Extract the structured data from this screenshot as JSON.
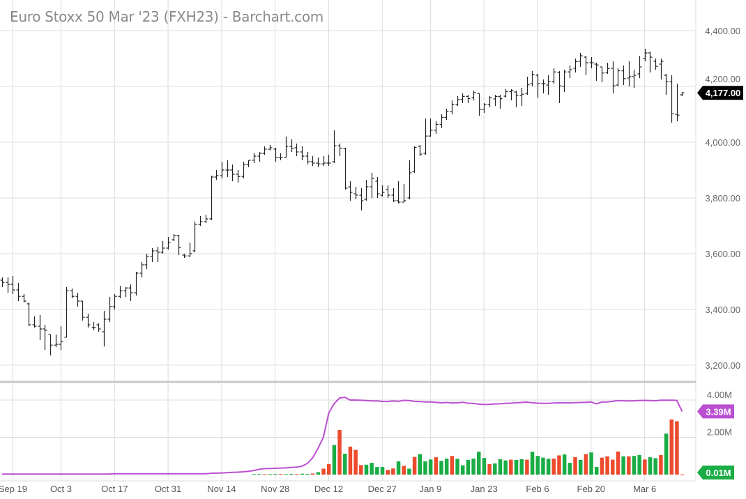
{
  "title": "Euro Stoxx 50 Mar '23 (FXH23) - Barchart.com",
  "colors": {
    "up": "#1aad45",
    "down": "#ec4b2c",
    "open_interest": "#bb4fd2",
    "bar": "#222222",
    "grid": "#dcdcdc",
    "last_badge": "#000000"
  },
  "chart_data": [
    {
      "type": "ohlc",
      "y_ticks": [
        {
          "value": 4400,
          "label": "4,400.00"
        },
        {
          "value": 4200,
          "label": "4,200.00"
        },
        {
          "value": 4000,
          "label": "4,000.00"
        },
        {
          "value": 3800,
          "label": "3,800.00"
        },
        {
          "value": 3600,
          "label": "3,600.00"
        },
        {
          "value": 3400,
          "label": "3,400.00"
        },
        {
          "value": 3200,
          "label": "3,200.00"
        }
      ],
      "ylim": [
        3150,
        4440
      ],
      "grid": true,
      "last_price_label": "4,177.00",
      "ohlc": [
        [
          3505,
          3515,
          3480,
          3497
        ],
        [
          3497,
          3515,
          3460,
          3490
        ],
        [
          3490,
          3520,
          3455,
          3470
        ],
        [
          3470,
          3495,
          3430,
          3447
        ],
        [
          3447,
          3455,
          3425,
          3430
        ],
        [
          3420,
          3425,
          3340,
          3345
        ],
        [
          3345,
          3375,
          3335,
          3340
        ],
        [
          3340,
          3380,
          3290,
          3330
        ],
        [
          3330,
          3345,
          3255,
          3325
        ],
        [
          3310,
          3310,
          3235,
          3272
        ],
        [
          3272,
          3310,
          3265,
          3275
        ],
        [
          3275,
          3340,
          3255,
          3285
        ],
        [
          3300,
          3480,
          3300,
          3467
        ],
        [
          3467,
          3475,
          3440,
          3447
        ],
        [
          3447,
          3460,
          3410,
          3430
        ],
        [
          3430,
          3430,
          3360,
          3372
        ],
        [
          3372,
          3385,
          3335,
          3345
        ],
        [
          3335,
          3355,
          3325,
          3335
        ],
        [
          3345,
          3350,
          3320,
          3330
        ],
        [
          3320,
          3395,
          3267,
          3365
        ],
        [
          3365,
          3445,
          3355,
          3410
        ],
        [
          3410,
          3455,
          3400,
          3447
        ],
        [
          3447,
          3485,
          3440,
          3467
        ],
        [
          3467,
          3480,
          3445,
          3477
        ],
        [
          3477,
          3490,
          3430,
          3460
        ],
        [
          3460,
          3535,
          3450,
          3530
        ],
        [
          3530,
          3570,
          3515,
          3560
        ],
        [
          3560,
          3600,
          3545,
          3590
        ],
        [
          3590,
          3620,
          3570,
          3610
        ],
        [
          3610,
          3625,
          3570,
          3605
        ],
        [
          3605,
          3645,
          3600,
          3620
        ],
        [
          3620,
          3660,
          3615,
          3640
        ],
        [
          3650,
          3670,
          3645,
          3665
        ],
        [
          3665,
          3668,
          3595,
          3622
        ],
        [
          3595,
          3600,
          3585,
          3592
        ],
        [
          3592,
          3640,
          3588,
          3600
        ],
        [
          3610,
          3715,
          3605,
          3705
        ],
        [
          3705,
          3735,
          3700,
          3715
        ],
        [
          3715,
          3740,
          3710,
          3725
        ],
        [
          3725,
          3880,
          3720,
          3875
        ],
        [
          3875,
          3900,
          3865,
          3880
        ],
        [
          3880,
          3930,
          3870,
          3900
        ],
        [
          3900,
          3935,
          3875,
          3900
        ],
        [
          3900,
          3920,
          3860,
          3885
        ],
        [
          3885,
          3900,
          3855,
          3877
        ],
        [
          3877,
          3930,
          3870,
          3920
        ],
        [
          3920,
          3935,
          3910,
          3935
        ],
        [
          3935,
          3960,
          3925,
          3950
        ],
        [
          3950,
          3965,
          3930,
          3960
        ],
        [
          3960,
          3985,
          3955,
          3975
        ],
        [
          3975,
          3990,
          3970,
          3980
        ],
        [
          3975,
          3980,
          3930,
          3945
        ],
        [
          3945,
          3960,
          3935,
          3945
        ],
        [
          3945,
          4020,
          3945,
          3985
        ],
        [
          3985,
          4010,
          3965,
          3978
        ],
        [
          3980,
          3995,
          3950,
          3965
        ],
        [
          3965,
          3985,
          3935,
          3950
        ],
        [
          3950,
          3965,
          3920,
          3930
        ],
        [
          3930,
          3950,
          3915,
          3925
        ],
        [
          3925,
          3945,
          3910,
          3922
        ],
        [
          3922,
          3950,
          3915,
          3925
        ],
        [
          3925,
          3955,
          3915,
          3925
        ],
        [
          3930,
          4043,
          3925,
          3987
        ],
        [
          3987,
          3995,
          3950,
          3978
        ],
        [
          3978,
          3980,
          3830,
          3835
        ],
        [
          3840,
          3860,
          3790,
          3820
        ],
        [
          3815,
          3840,
          3795,
          3810
        ],
        [
          3810,
          3835,
          3755,
          3790
        ],
        [
          3795,
          3865,
          3790,
          3840
        ],
        [
          3840,
          3890,
          3800,
          3870
        ],
        [
          3860,
          3875,
          3800,
          3815
        ],
        [
          3810,
          3845,
          3805,
          3820
        ],
        [
          3830,
          3845,
          3800,
          3810
        ],
        [
          3810,
          3835,
          3785,
          3790
        ],
        [
          3790,
          3860,
          3780,
          3785
        ],
        [
          3785,
          3850,
          3785,
          3790
        ],
        [
          3800,
          3935,
          3795,
          3890
        ],
        [
          3895,
          3985,
          3890,
          3981
        ],
        [
          3985,
          3990,
          3950,
          3957
        ],
        [
          3960,
          4085,
          3955,
          4022
        ],
        [
          4022,
          4085,
          4020,
          4043
        ],
        [
          4043,
          4075,
          4030,
          4064
        ],
        [
          4064,
          4100,
          4050,
          4089
        ],
        [
          4089,
          4120,
          4080,
          4110
        ],
        [
          4110,
          4150,
          4100,
          4135
        ],
        [
          4135,
          4165,
          4130,
          4153
        ],
        [
          4153,
          4175,
          4140,
          4164
        ],
        [
          4164,
          4170,
          4140,
          4156
        ],
        [
          4160,
          4185,
          4150,
          4178
        ],
        [
          4175,
          4175,
          4095,
          4118
        ],
        [
          4118,
          4140,
          4105,
          4135
        ],
        [
          4135,
          4165,
          4125,
          4160
        ],
        [
          4155,
          4170,
          4130,
          4164
        ],
        [
          4164,
          4170,
          4120,
          4156
        ],
        [
          4165,
          4190,
          4160,
          4181
        ],
        [
          4181,
          4190,
          4150,
          4185
        ],
        [
          4180,
          4185,
          4125,
          4168
        ],
        [
          4168,
          4195,
          4130,
          4172
        ],
        [
          4175,
          4235,
          4170,
          4206
        ],
        [
          4210,
          4255,
          4200,
          4243
        ],
        [
          4240,
          4245,
          4160,
          4210
        ],
        [
          4210,
          4225,
          4175,
          4210
        ],
        [
          4205,
          4240,
          4170,
          4218
        ],
        [
          4218,
          4265,
          4210,
          4252
        ],
        [
          4250,
          4255,
          4140,
          4202
        ],
        [
          4200,
          4260,
          4180,
          4252
        ],
        [
          4252,
          4275,
          4230,
          4260
        ],
        [
          4265,
          4300,
          4250,
          4289
        ],
        [
          4290,
          4320,
          4270,
          4310
        ],
        [
          4305,
          4310,
          4240,
          4285
        ],
        [
          4285,
          4305,
          4265,
          4285
        ],
        [
          4280,
          4285,
          4220,
          4277
        ],
        [
          4270,
          4270,
          4215,
          4248
        ],
        [
          4250,
          4285,
          4245,
          4264
        ],
        [
          4265,
          4290,
          4175,
          4202
        ],
        [
          4205,
          4265,
          4200,
          4256
        ],
        [
          4256,
          4275,
          4205,
          4228
        ],
        [
          4230,
          4290,
          4200,
          4235
        ],
        [
          4235,
          4260,
          4195,
          4240
        ],
        [
          4245,
          4310,
          4230,
          4270
        ],
        [
          4300,
          4335,
          4290,
          4320
        ],
        [
          4320,
          4325,
          4250,
          4305
        ],
        [
          4290,
          4300,
          4260,
          4272
        ],
        [
          4280,
          4300,
          4225,
          4290
        ],
        [
          4240,
          4245,
          4170,
          4217
        ],
        [
          4217,
          4240,
          4070,
          4102
        ],
        [
          4100,
          4210,
          4075,
          4097
        ],
        [
          4170,
          4180,
          4165,
          4177
        ]
      ]
    },
    {
      "type": "bar",
      "y_ticks": [
        {
          "value": 4,
          "label": "4.00M"
        },
        {
          "value": 2,
          "label": "2.00M"
        }
      ],
      "ylim": [
        0,
        4.4
      ],
      "unit": "M",
      "volume": [
        0,
        0,
        0,
        0,
        0,
        0,
        0,
        0,
        0,
        0,
        0,
        0,
        0,
        0,
        0,
        0,
        0,
        0,
        0,
        0,
        0,
        0,
        0,
        0,
        0,
        0,
        0,
        0,
        0,
        0,
        0,
        0,
        0,
        0,
        0,
        0,
        0,
        0,
        0,
        0,
        0,
        0,
        0,
        0,
        0,
        0,
        0,
        0.02,
        0.03,
        0.02,
        0.02,
        0.03,
        0.03,
        0.02,
        0.04,
        0.03,
        0.05,
        0.04,
        0.06,
        0.13,
        0.32,
        0.57,
        1.59,
        2.39,
        1.12,
        1.5,
        1.33,
        0.51,
        0.53,
        0.63,
        0.41,
        0.41,
        0.25,
        0.33,
        0.71,
        0.47,
        0.32,
        0.95,
        1.1,
        0.71,
        0.81,
        0.93,
        0.74,
        0.86,
        1.0,
        0.85,
        0.5,
        0.79,
        0.86,
        1.23,
        0.89,
        0.56,
        0.6,
        0.83,
        0.76,
        0.8,
        0.79,
        0.83,
        0.8,
        1.23,
        1.0,
        0.91,
        0.85,
        0.86,
        1.03,
        1.08,
        0.63,
        0.94,
        0.79,
        1.1,
        1.19,
        0.41,
        0.91,
        0.98,
        0.8,
        1.24,
        0.98,
        0.98,
        1.0,
        1.05,
        0.81,
        0.93,
        0.88,
        1.05,
        2.2,
        2.96,
        2.86,
        0.01
      ],
      "volume_direction": "gggggggggggggggggggggggggggggggggggggggggggggggggrggrggrggrgrrgrgrrrggggrrgrgrgggrggrggggggrgggrggrggggrrggrgrggrrrrgrggrggrgrrrgg",
      "open_interest": [
        0.03,
        0.03,
        0.03,
        0.03,
        0.03,
        0.03,
        0.03,
        0.03,
        0.03,
        0.03,
        0.03,
        0.03,
        0.03,
        0.03,
        0.03,
        0.03,
        0.03,
        0.03,
        0.03,
        0.03,
        0.03,
        0.05,
        0.05,
        0.05,
        0.05,
        0.05,
        0.05,
        0.05,
        0.05,
        0.05,
        0.05,
        0.05,
        0.05,
        0.05,
        0.05,
        0.05,
        0.05,
        0.05,
        0.05,
        0.07,
        0.08,
        0.09,
        0.1,
        0.12,
        0.13,
        0.15,
        0.18,
        0.22,
        0.28,
        0.32,
        0.33,
        0.34,
        0.35,
        0.36,
        0.38,
        0.4,
        0.45,
        0.6,
        0.9,
        1.4,
        2.0,
        3.3,
        3.8,
        4.1,
        4.15,
        4.0,
        4.0,
        3.99,
        3.97,
        3.95,
        3.95,
        3.93,
        3.92,
        3.95,
        3.93,
        3.98,
        3.97,
        3.93,
        3.92,
        3.9,
        3.9,
        3.88,
        3.85,
        3.87,
        3.84,
        3.85,
        3.88,
        3.83,
        3.82,
        3.78,
        3.76,
        3.77,
        3.79,
        3.8,
        3.82,
        3.83,
        3.85,
        3.87,
        3.89,
        3.85,
        3.83,
        3.82,
        3.82,
        3.84,
        3.85,
        3.85,
        3.84,
        3.86,
        3.87,
        3.88,
        3.9,
        3.8,
        3.89,
        3.9,
        3.93,
        3.97,
        3.96,
        3.95,
        3.96,
        3.97,
        3.98,
        3.97,
        3.96,
        3.99,
        3.99,
        3.99,
        3.98,
        3.39
      ],
      "open_interest_label": "3.39M",
      "last_volume_label": "0.01M"
    }
  ],
  "x_ticks": [
    {
      "index": 2,
      "label": "Sep 19"
    },
    {
      "index": 11,
      "label": "Oct 3"
    },
    {
      "index": 21,
      "label": "Oct 17"
    },
    {
      "index": 31,
      "label": "Oct 31"
    },
    {
      "index": 41,
      "label": "Nov 14"
    },
    {
      "index": 51,
      "label": "Nov 28"
    },
    {
      "index": 61,
      "label": "Dec 12"
    },
    {
      "index": 71,
      "label": "Dec 27"
    },
    {
      "index": 80,
      "label": "Jan 9"
    },
    {
      "index": 90,
      "label": "Jan 23"
    },
    {
      "index": 100,
      "label": "Feb 6"
    },
    {
      "index": 110,
      "label": "Feb 20"
    },
    {
      "index": 120,
      "label": "Mar 6"
    }
  ]
}
